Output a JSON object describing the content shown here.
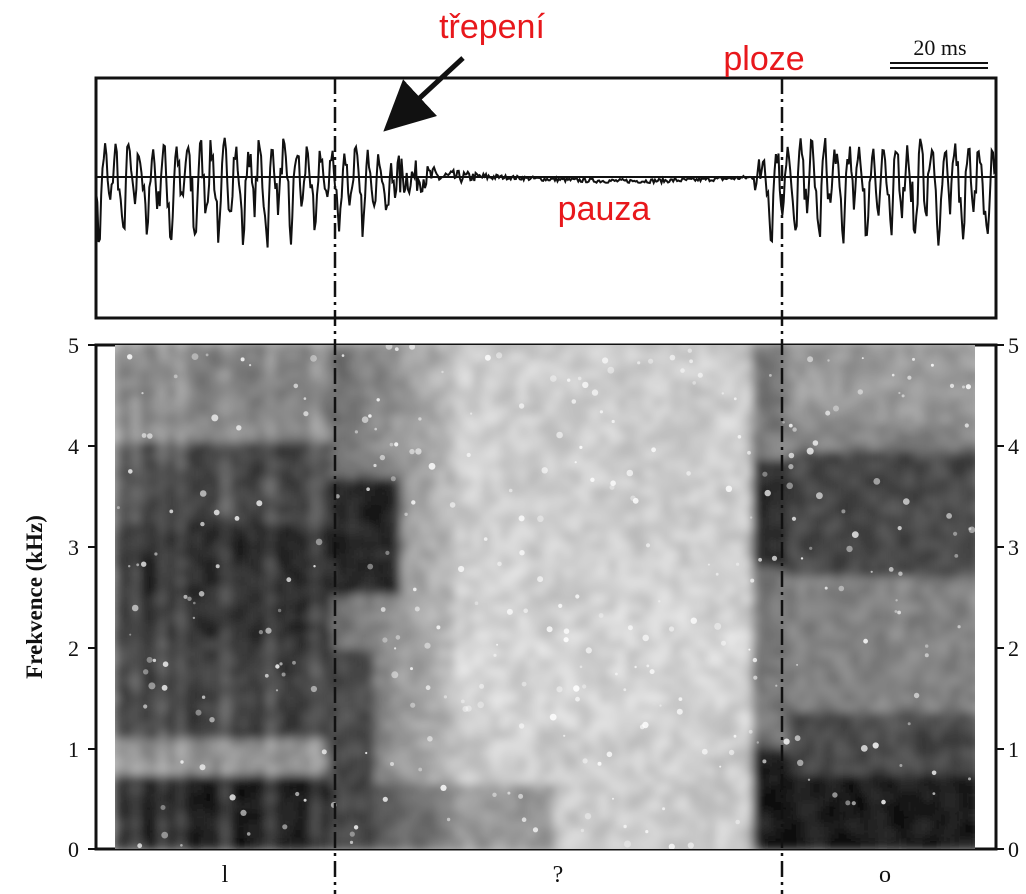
{
  "annotations": {
    "fray": "třepení",
    "plosion": "ploze",
    "pause": "pauza"
  },
  "scale_bar": {
    "label": "20 ms"
  },
  "spectrogram": {
    "y_axis_label": "Frekvence (kHz)",
    "y_ticks": [
      "0",
      "1",
      "2",
      "3",
      "4",
      "5"
    ]
  },
  "segments": [
    "l",
    "?",
    "o"
  ]
}
